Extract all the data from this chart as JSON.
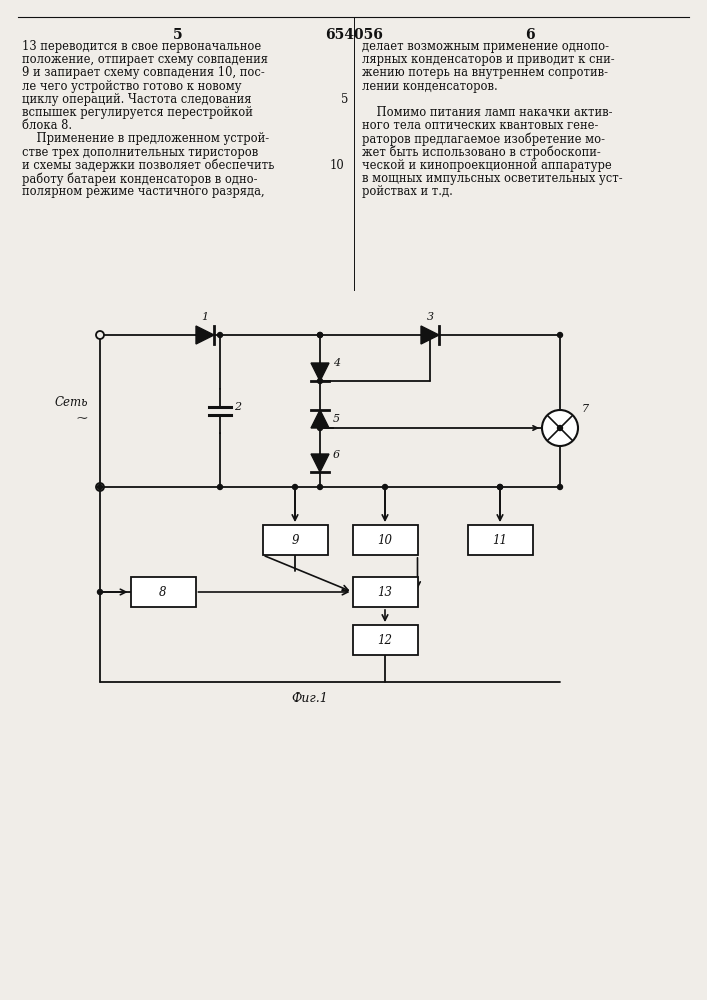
{
  "page_title": "654056",
  "left_text_lines": [
    "13 переводится в свое первоначальное",
    "положение, отпирает схему совпадения",
    "9 и запирает схему совпадения 10, пос-",
    "ле чего устройство готово к новому",
    "циклу операций. Частота следования",
    "вспышек регулируется перестройкой",
    "блока 8.",
    "    Применение в предложенном устрой-",
    "стве трех дополнительных тиристоров",
    "и схемы задержки позволяет обеспечить",
    "работу батареи конденсаторов в одно-",
    "полярном режиме частичного разряда,"
  ],
  "right_text_lines": [
    "делает возможным применение однопо-",
    "лярных конденсаторов и приводит к сни-",
    "жению потерь на внутреннем сопротив-",
    "лении конденсаторов.",
    "",
    "    Помимо питания ламп накачки актив-",
    "ного тела оптических квантовых гене-",
    "раторов предлагаемое изобретение мо-",
    "жет быть использовано в стробоскопи-",
    "ческой и кинопроекционной аппаратуре",
    "в мощных импульсных осветительных уст-",
    "ройствах и т.д."
  ],
  "caption": "Фиг.1",
  "bg_color": "#f0ede8",
  "text_color": "#111111",
  "line_color": "#111111"
}
